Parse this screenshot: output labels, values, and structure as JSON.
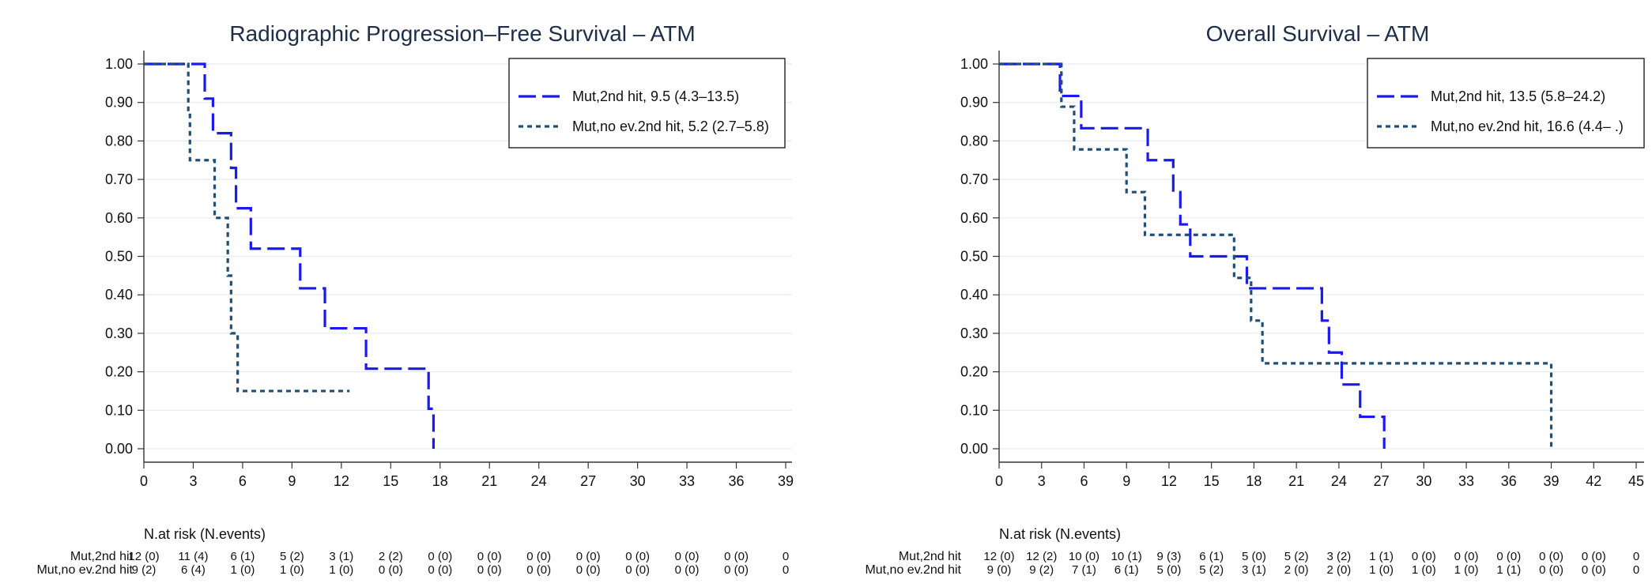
{
  "chart_data": [
    {
      "type": "line",
      "subtype": "kaplan-meier-step",
      "title": "Radiographic Progression–Free Survival – ATM",
      "xlabel": "",
      "ylabel": "",
      "xlim": [
        0,
        39
      ],
      "ylim": [
        0,
        1
      ],
      "xticks": [
        "0",
        "3",
        "6",
        "9",
        "12",
        "15",
        "18",
        "21",
        "24",
        "27",
        "30",
        "33",
        "36",
        "39"
      ],
      "yticks": [
        "0.00",
        "0.10",
        "0.20",
        "0.30",
        "0.40",
        "0.50",
        "0.60",
        "0.70",
        "0.80",
        "0.90",
        "1.00"
      ],
      "grid": true,
      "legend_position": "top-right",
      "series": [
        {
          "name": "Mut,2nd hit, 9.5 (4.3–13.5)",
          "color": "#1a1aee",
          "dash": "long-dash",
          "x": [
            0,
            3.7,
            4.2,
            4.5,
            5.3,
            5.6,
            5.8,
            6.5,
            9.5,
            11.0,
            13.5,
            17.3,
            17.6
          ],
          "y": [
            1.0,
            0.91,
            0.82,
            0.82,
            0.73,
            0.625,
            0.625,
            0.52,
            0.417,
            0.313,
            0.208,
            0.104,
            0.0
          ]
        },
        {
          "name": "Mut,no ev.2nd hit, 5.2 (2.7–5.8)",
          "color": "#1f4e79",
          "dash": "short-dash",
          "x": [
            0,
            2.7,
            2.8,
            4.3,
            5.1,
            5.3,
            5.5,
            5.7,
            12.5
          ],
          "y": [
            1.0,
            0.875,
            0.75,
            0.6,
            0.45,
            0.3,
            0.3,
            0.15,
            0.15
          ],
          "end_x": 12.5
        }
      ],
      "risk_table": {
        "heading": "N.at risk (N.events)",
        "rows": [
          {
            "label": "Mut,2nd hit",
            "cells": [
              "12 (0)",
              "11 (4)",
              "6 (1)",
              "5 (2)",
              "3 (1)",
              "2 (2)",
              "0 (0)",
              "0 (0)",
              "0 (0)",
              "0 (0)",
              "0 (0)",
              "0 (0)",
              "0 (0)",
              "0"
            ]
          },
          {
            "label": "Mut,no ev.2nd hit",
            "cells": [
              "9 (2)",
              "6 (4)",
              "1 (0)",
              "1 (0)",
              "1 (0)",
              "0 (0)",
              "0 (0)",
              "0 (0)",
              "0 (0)",
              "0 (0)",
              "0 (0)",
              "0 (0)",
              "0 (0)",
              "0"
            ]
          }
        ]
      }
    },
    {
      "type": "line",
      "subtype": "kaplan-meier-step",
      "title": "Overall Survival – ATM",
      "xlabel": "",
      "ylabel": "",
      "xlim": [
        0,
        45
      ],
      "ylim": [
        0,
        1
      ],
      "xticks": [
        "0",
        "3",
        "6",
        "9",
        "12",
        "15",
        "18",
        "21",
        "24",
        "27",
        "30",
        "33",
        "36",
        "39",
        "42",
        "45"
      ],
      "yticks": [
        "0.00",
        "0.10",
        "0.20",
        "0.30",
        "0.40",
        "0.50",
        "0.60",
        "0.70",
        "0.80",
        "0.90",
        "1.00"
      ],
      "grid": true,
      "legend_position": "top-right",
      "series": [
        {
          "name": "Mut,2nd hit, 13.5 (5.8–24.2)",
          "color": "#1a1aee",
          "dash": "long-dash",
          "x": [
            0,
            4.3,
            5.8,
            10.5,
            12.3,
            12.8,
            13.5,
            17.5,
            22.8,
            23.3,
            24.2,
            25.5,
            27.2
          ],
          "y": [
            1.0,
            0.917,
            0.833,
            0.75,
            0.667,
            0.583,
            0.5,
            0.417,
            0.333,
            0.25,
            0.167,
            0.083,
            0.0
          ]
        },
        {
          "name": "Mut,no ev.2nd hit, 16.6 (4.4– .)",
          "color": "#1f4e79",
          "dash": "short-dash",
          "x": [
            0,
            4.4,
            5.3,
            9.0,
            10.3,
            16.6,
            17.8,
            18.6,
            39.0
          ],
          "y": [
            1.0,
            0.889,
            0.778,
            0.667,
            0.556,
            0.444,
            0.333,
            0.222,
            0.0
          ]
        }
      ],
      "risk_table": {
        "heading": "N.at risk (N.events)",
        "rows": [
          {
            "label": "Mut,2nd hit",
            "cells": [
              "12 (0)",
              "12 (2)",
              "10 (0)",
              "10 (1)",
              "9 (3)",
              "6 (1)",
              "5 (0)",
              "5 (2)",
              "3 (2)",
              "1 (1)",
              "0 (0)",
              "0 (0)",
              "0 (0)",
              "0 (0)",
              "0 (0)",
              "0"
            ]
          },
          {
            "label": "Mut,no ev.2nd hit",
            "cells": [
              "9 (0)",
              "9 (2)",
              "7 (1)",
              "6 (1)",
              "5 (0)",
              "5 (2)",
              "3 (1)",
              "2 (0)",
              "2 (0)",
              "1 (0)",
              "1 (0)",
              "1 (0)",
              "1 (1)",
              "0 (0)",
              "0 (0)",
              "0"
            ]
          }
        ]
      }
    }
  ]
}
